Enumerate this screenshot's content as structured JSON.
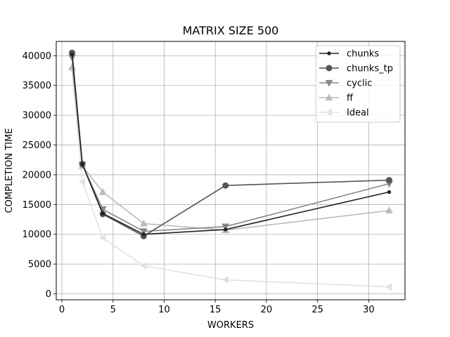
{
  "chart_data": {
    "type": "line",
    "title": "MATRIX SIZE 500",
    "xlabel": "WORKERS",
    "ylabel": "COMPLETION TIME",
    "xlim": [
      -0.55,
      33.55
    ],
    "ylim": [
      -1000,
      42400
    ],
    "xticks": [
      0,
      5,
      10,
      15,
      20,
      25,
      30
    ],
    "yticks": [
      0,
      5000,
      10000,
      15000,
      20000,
      25000,
      30000,
      35000,
      40000
    ],
    "grid": true,
    "legend_position": "top-right",
    "series": [
      {
        "name": "chunks",
        "color": "#222222",
        "marker": "point",
        "x": [
          1,
          2,
          4,
          8,
          16,
          32
        ],
        "values": [
          40200,
          21800,
          13500,
          10000,
          10800,
          17100
        ]
      },
      {
        "name": "chunks_tp",
        "color": "#555555",
        "marker": "circle",
        "x": [
          1,
          2,
          4,
          8,
          16,
          32
        ],
        "values": [
          40500,
          21800,
          13400,
          9700,
          18200,
          19100
        ]
      },
      {
        "name": "cyclic",
        "color": "#888888",
        "marker": "triangle-down",
        "x": [
          1,
          2,
          4,
          8,
          16,
          32
        ],
        "values": [
          39700,
          21700,
          14200,
          10500,
          11300,
          18500
        ]
      },
      {
        "name": "ff",
        "color": "#bbbbbb",
        "marker": "triangle-up",
        "x": [
          1,
          2,
          4,
          8,
          16,
          32
        ],
        "values": [
          38100,
          21500,
          17100,
          11800,
          10700,
          14000
        ]
      },
      {
        "name": "Ideal",
        "color": "#e2e2e2",
        "marker": "triangle-left",
        "x": [
          1,
          2,
          4,
          8,
          16,
          32
        ],
        "values": [
          37600,
          18800,
          9400,
          4700,
          2350,
          1180
        ]
      }
    ]
  }
}
